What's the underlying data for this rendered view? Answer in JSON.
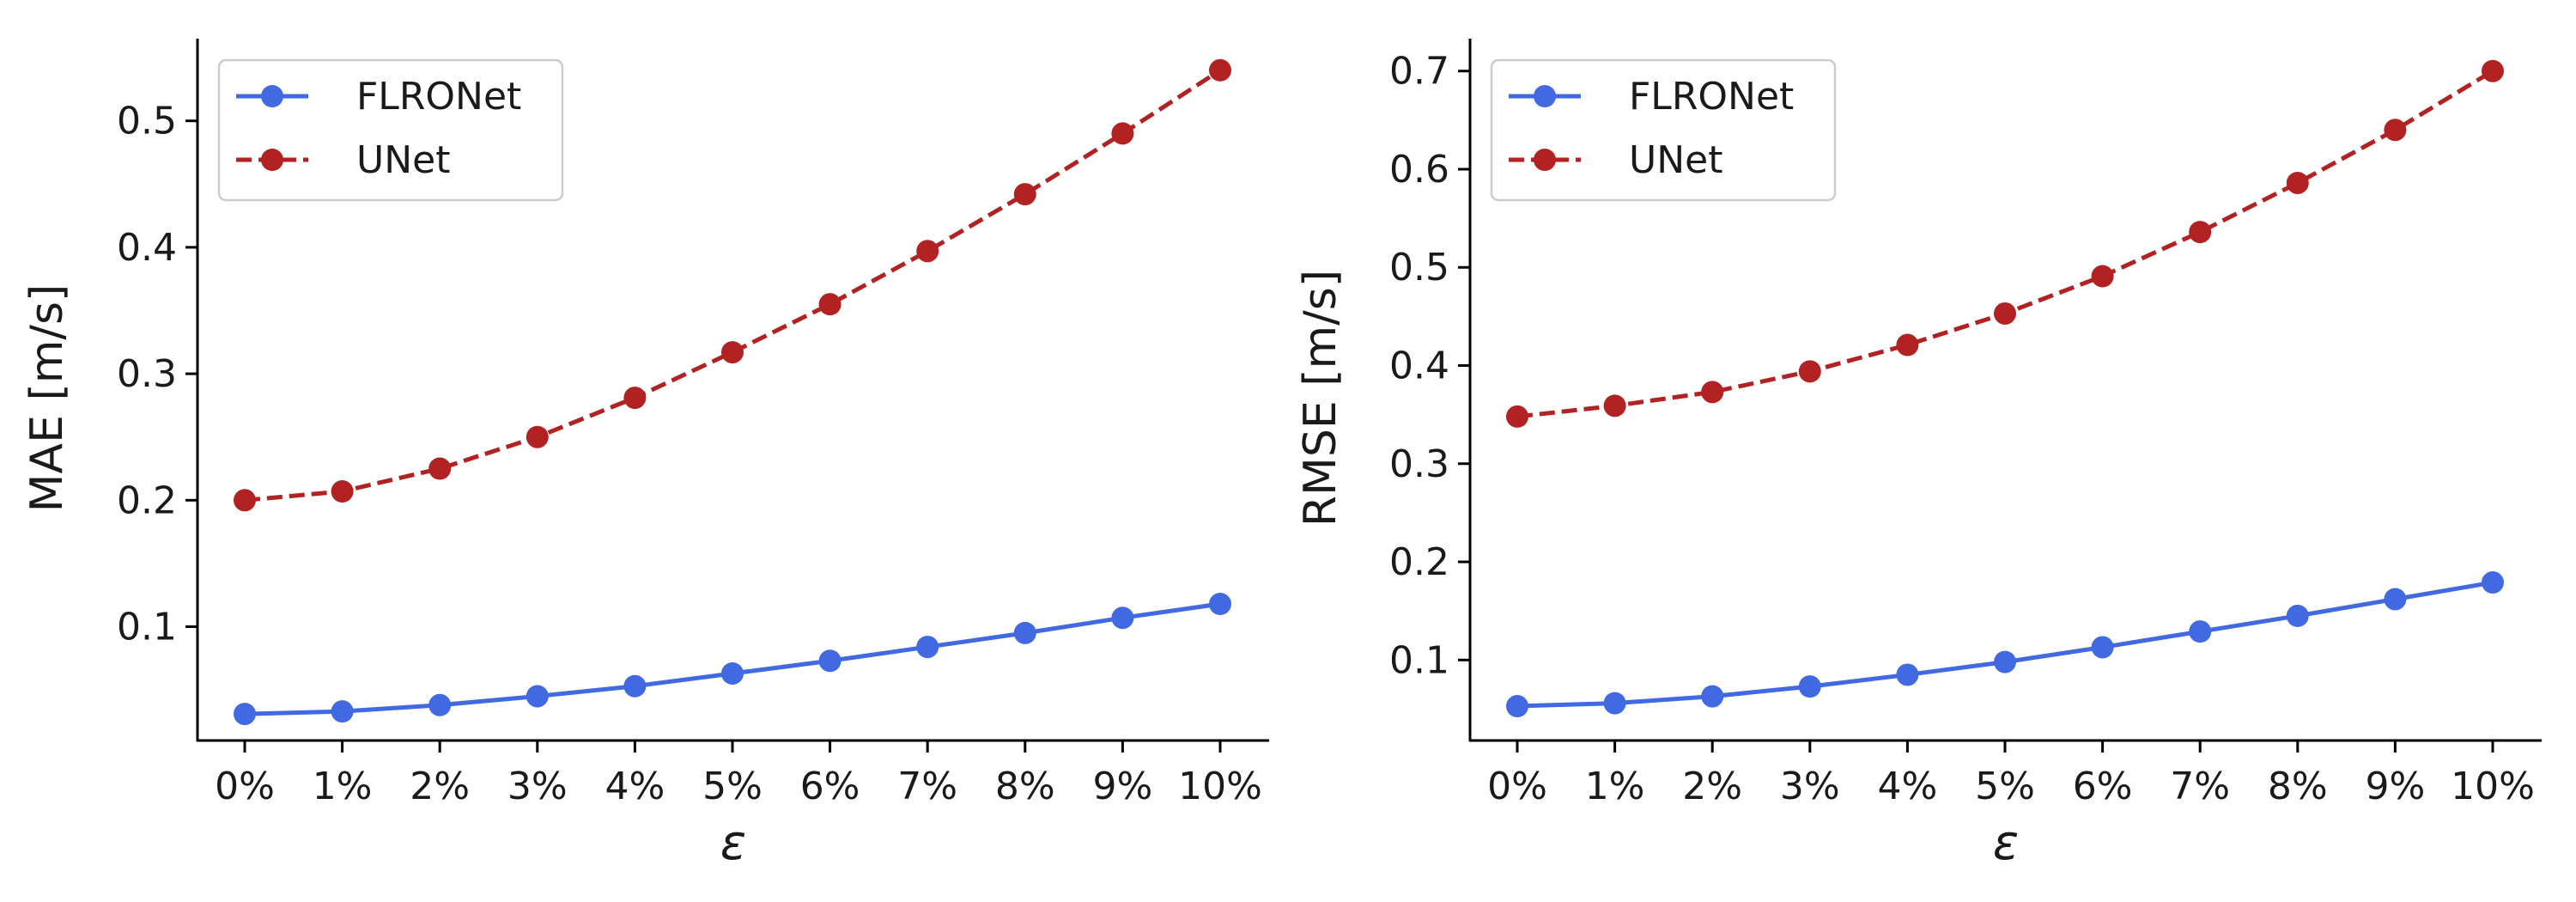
{
  "chart_data": [
    {
      "type": "line",
      "title": "",
      "xlabel": "ε",
      "ylabel": "MAE [m/s]",
      "categories": [
        "0%",
        "1%",
        "2%",
        "3%",
        "4%",
        "5%",
        "6%",
        "7%",
        "8%",
        "9%",
        "10%"
      ],
      "ylim": [
        0.01,
        0.565
      ],
      "yticks": [
        0.1,
        0.2,
        0.3,
        0.4,
        0.5
      ],
      "ytick_labels": [
        "0.1",
        "0.2",
        "0.3",
        "0.4",
        "0.5"
      ],
      "grid": false,
      "legend_position": "top-left",
      "series": [
        {
          "name": "FLRONet",
          "color": "#4169e1",
          "line_style": "solid",
          "marker": "circle",
          "values": [
            0.031,
            0.033,
            0.038,
            0.045,
            0.053,
            0.063,
            0.073,
            0.084,
            0.095,
            0.107,
            0.118
          ]
        },
        {
          "name": "UNet",
          "color": "#b22222",
          "line_style": "dashed",
          "marker": "circle",
          "values": [
            0.2,
            0.207,
            0.225,
            0.25,
            0.281,
            0.317,
            0.355,
            0.397,
            0.442,
            0.49,
            0.54
          ]
        }
      ]
    },
    {
      "type": "line",
      "title": "",
      "xlabel": "ε",
      "ylabel": "RMSE [m/s]",
      "categories": [
        "0%",
        "1%",
        "2%",
        "3%",
        "4%",
        "5%",
        "6%",
        "7%",
        "8%",
        "9%",
        "10%"
      ],
      "ylim": [
        0.018,
        0.733
      ],
      "yticks": [
        0.1,
        0.2,
        0.3,
        0.4,
        0.5,
        0.6,
        0.7
      ],
      "ytick_labels": [
        "0.1",
        "0.2",
        "0.3",
        "0.4",
        "0.5",
        "0.6",
        "0.7"
      ],
      "grid": false,
      "legend_position": "top-left",
      "series": [
        {
          "name": "FLRONet",
          "color": "#4169e1",
          "line_style": "solid",
          "marker": "circle",
          "values": [
            0.053,
            0.056,
            0.063,
            0.073,
            0.085,
            0.098,
            0.113,
            0.129,
            0.145,
            0.162,
            0.179
          ]
        },
        {
          "name": "UNet",
          "color": "#b22222",
          "line_style": "dashed",
          "marker": "circle",
          "values": [
            0.348,
            0.359,
            0.373,
            0.394,
            0.421,
            0.453,
            0.491,
            0.536,
            0.586,
            0.64,
            0.7
          ]
        }
      ]
    }
  ]
}
